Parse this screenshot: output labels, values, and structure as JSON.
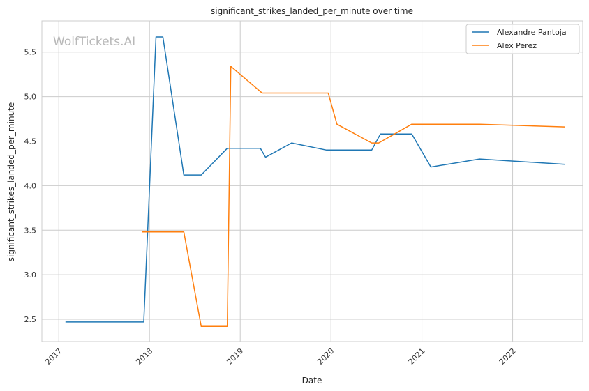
{
  "chart_data": {
    "type": "line",
    "title": "significant_strikes_landed_per_minute over time",
    "xlabel": "Date",
    "ylabel": "significant_strikes_landed_per_minute",
    "watermark": "WolfTickets.AI",
    "x_axis_type": "date",
    "xlim": [
      "2016-10-25",
      "2022-10-10"
    ],
    "ylim": [
      2.25,
      5.85
    ],
    "x_ticks": [
      {
        "date": "2017-01-01",
        "label": "2017"
      },
      {
        "date": "2018-01-01",
        "label": "2018"
      },
      {
        "date": "2019-01-01",
        "label": "2019"
      },
      {
        "date": "2020-01-01",
        "label": "2020"
      },
      {
        "date": "2021-01-01",
        "label": "2021"
      },
      {
        "date": "2022-01-01",
        "label": "2022"
      }
    ],
    "y_ticks": [
      {
        "value": 2.5,
        "label": "2.5"
      },
      {
        "value": 3.0,
        "label": "3.0"
      },
      {
        "value": 3.5,
        "label": "3.5"
      },
      {
        "value": 4.0,
        "label": "4.0"
      },
      {
        "value": 4.5,
        "label": "4.5"
      },
      {
        "value": 5.0,
        "label": "5.0"
      },
      {
        "value": 5.5,
        "label": "5.5"
      }
    ],
    "x_tick_rotation": 45,
    "grid": true,
    "legend_position": "top-right",
    "series": [
      {
        "name": "Alexandre Pantoja",
        "color": "#1f77b4",
        "points": [
          {
            "x": "2017-01-28",
            "y": 2.47
          },
          {
            "x": "2017-12-09",
            "y": 2.47
          },
          {
            "x": "2018-01-27",
            "y": 5.67
          },
          {
            "x": "2018-02-24",
            "y": 5.67
          },
          {
            "x": "2018-05-19",
            "y": 4.12
          },
          {
            "x": "2018-07-28",
            "y": 4.12
          },
          {
            "x": "2018-11-10",
            "y": 4.42
          },
          {
            "x": "2019-03-23",
            "y": 4.42
          },
          {
            "x": "2019-04-13",
            "y": 4.32
          },
          {
            "x": "2019-07-27",
            "y": 4.48
          },
          {
            "x": "2019-12-14",
            "y": 4.4
          },
          {
            "x": "2020-06-13",
            "y": 4.4
          },
          {
            "x": "2020-07-18",
            "y": 4.58
          },
          {
            "x": "2020-11-21",
            "y": 4.58
          },
          {
            "x": "2021-02-06",
            "y": 4.21
          },
          {
            "x": "2021-08-21",
            "y": 4.3
          },
          {
            "x": "2022-07-30",
            "y": 4.24
          }
        ]
      },
      {
        "name": "Alex Perez",
        "color": "#ff7f0e",
        "points": [
          {
            "x": "2017-12-02",
            "y": 3.48
          },
          {
            "x": "2018-05-19",
            "y": 3.48
          },
          {
            "x": "2018-07-28",
            "y": 2.42
          },
          {
            "x": "2018-11-10",
            "y": 2.42
          },
          {
            "x": "2018-11-24",
            "y": 5.34
          },
          {
            "x": "2019-03-30",
            "y": 5.04
          },
          {
            "x": "2019-12-21",
            "y": 5.04
          },
          {
            "x": "2020-01-25",
            "y": 4.69
          },
          {
            "x": "2020-06-13",
            "y": 4.48
          },
          {
            "x": "2020-07-11",
            "y": 4.48
          },
          {
            "x": "2020-11-21",
            "y": 4.69
          },
          {
            "x": "2021-08-21",
            "y": 4.69
          },
          {
            "x": "2022-07-30",
            "y": 4.66
          }
        ]
      }
    ]
  }
}
